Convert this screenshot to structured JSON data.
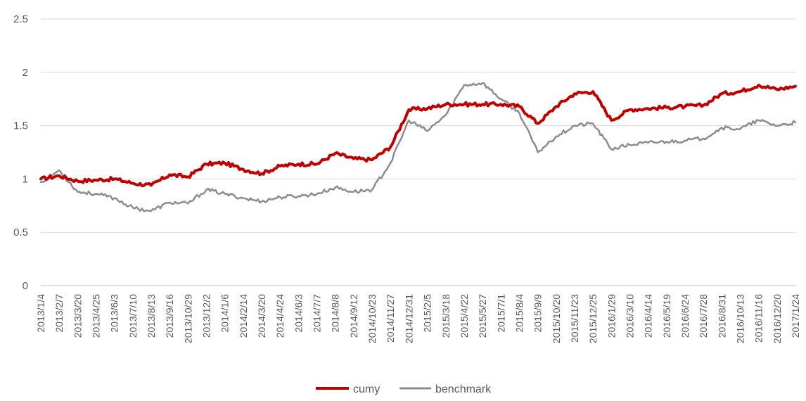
{
  "chart_data": {
    "type": "line",
    "title": "",
    "xlabel": "",
    "ylabel": "",
    "ylim": [
      0,
      2.5
    ],
    "yticks": [
      0,
      0.5,
      1,
      1.5,
      2,
      2.5
    ],
    "ytick_labels": [
      "0",
      "0.5",
      "1",
      "1.5",
      "2",
      "2.5"
    ],
    "grid": "horizontal",
    "legend_position": "bottom",
    "xtick_labels": [
      "2013/1/4",
      "2013/2/7",
      "2013/3/20",
      "2013/4/25",
      "2013/6/3",
      "2013/7/10",
      "2013/8/13",
      "2013/9/16",
      "2013/10/29",
      "2013/12/2",
      "2014/1/6",
      "2014/2/14",
      "2014/3/20",
      "2014/4/24",
      "2014/6/3",
      "2014/7/7",
      "2014/8/8",
      "2014/9/12",
      "2014/10/23",
      "2014/11/27",
      "2014/12/31",
      "2015/2/5",
      "2015/3/18",
      "2015/4/22",
      "2015/5/27",
      "2015/7/1",
      "2015/8/4",
      "2015/9/9",
      "2015/10/20",
      "2015/11/23",
      "2015/12/25",
      "2016/1/29",
      "2016/3/10",
      "2016/4/14",
      "2016/5/19",
      "2016/6/24",
      "2016/7/28",
      "2016/8/31",
      "2016/10/13",
      "2016/11/16",
      "2016/12/20",
      "2017/1/24"
    ],
    "series": [
      {
        "name": "cumy",
        "color": "#C00000",
        "x": [
          "2013/1/4",
          "2013/2/7",
          "2013/3/20",
          "2013/4/25",
          "2013/6/3",
          "2013/7/10",
          "2013/8/13",
          "2013/9/16",
          "2013/10/29",
          "2013/12/2",
          "2014/1/6",
          "2014/2/14",
          "2014/3/20",
          "2014/4/24",
          "2014/6/3",
          "2014/7/7",
          "2014/8/8",
          "2014/9/12",
          "2014/10/23",
          "2014/11/27",
          "2014/12/31",
          "2015/2/5",
          "2015/3/18",
          "2015/4/22",
          "2015/5/27",
          "2015/7/1",
          "2015/8/4",
          "2015/9/9",
          "2015/10/20",
          "2015/11/23",
          "2015/12/25",
          "2016/1/29",
          "2016/3/10",
          "2016/4/14",
          "2016/5/19",
          "2016/6/24",
          "2016/7/28",
          "2016/8/31",
          "2016/10/13",
          "2016/11/16",
          "2016/12/20",
          "2017/1/24"
        ],
        "values": [
          1.0,
          1.03,
          0.98,
          0.99,
          1.0,
          0.96,
          0.94,
          1.04,
          1.02,
          1.14,
          1.15,
          1.09,
          1.05,
          1.12,
          1.14,
          1.14,
          1.24,
          1.19,
          1.18,
          1.3,
          1.65,
          1.66,
          1.7,
          1.7,
          1.7,
          1.7,
          1.68,
          1.52,
          1.68,
          1.8,
          1.82,
          1.55,
          1.65,
          1.66,
          1.67,
          1.68,
          1.69,
          1.8,
          1.82,
          1.88,
          1.84,
          1.87
        ]
      },
      {
        "name": "benchmark",
        "color": "#8C8C8C",
        "x": [
          "2013/1/4",
          "2013/2/7",
          "2013/3/20",
          "2013/4/25",
          "2013/6/3",
          "2013/7/10",
          "2013/8/13",
          "2013/9/16",
          "2013/10/29",
          "2013/12/2",
          "2014/1/6",
          "2014/2/14",
          "2014/3/20",
          "2014/4/24",
          "2014/6/3",
          "2014/7/7",
          "2014/8/8",
          "2014/9/12",
          "2014/10/23",
          "2014/11/27",
          "2014/12/31",
          "2015/2/5",
          "2015/3/18",
          "2015/4/22",
          "2015/5/27",
          "2015/7/1",
          "2015/8/4",
          "2015/9/9",
          "2015/10/20",
          "2015/11/23",
          "2015/12/25",
          "2016/1/29",
          "2016/3/10",
          "2016/4/14",
          "2016/5/19",
          "2016/6/24",
          "2016/7/28",
          "2016/8/31",
          "2016/10/13",
          "2016/11/16",
          "2016/12/20",
          "2017/1/24"
        ],
        "values": [
          0.97,
          1.08,
          0.88,
          0.86,
          0.82,
          0.73,
          0.7,
          0.78,
          0.77,
          0.9,
          0.86,
          0.82,
          0.79,
          0.83,
          0.84,
          0.86,
          0.92,
          0.88,
          0.9,
          1.15,
          1.55,
          1.45,
          1.6,
          1.88,
          1.9,
          1.75,
          1.62,
          1.25,
          1.4,
          1.5,
          1.52,
          1.28,
          1.32,
          1.34,
          1.35,
          1.36,
          1.38,
          1.48,
          1.47,
          1.55,
          1.5,
          1.53
        ]
      }
    ]
  }
}
